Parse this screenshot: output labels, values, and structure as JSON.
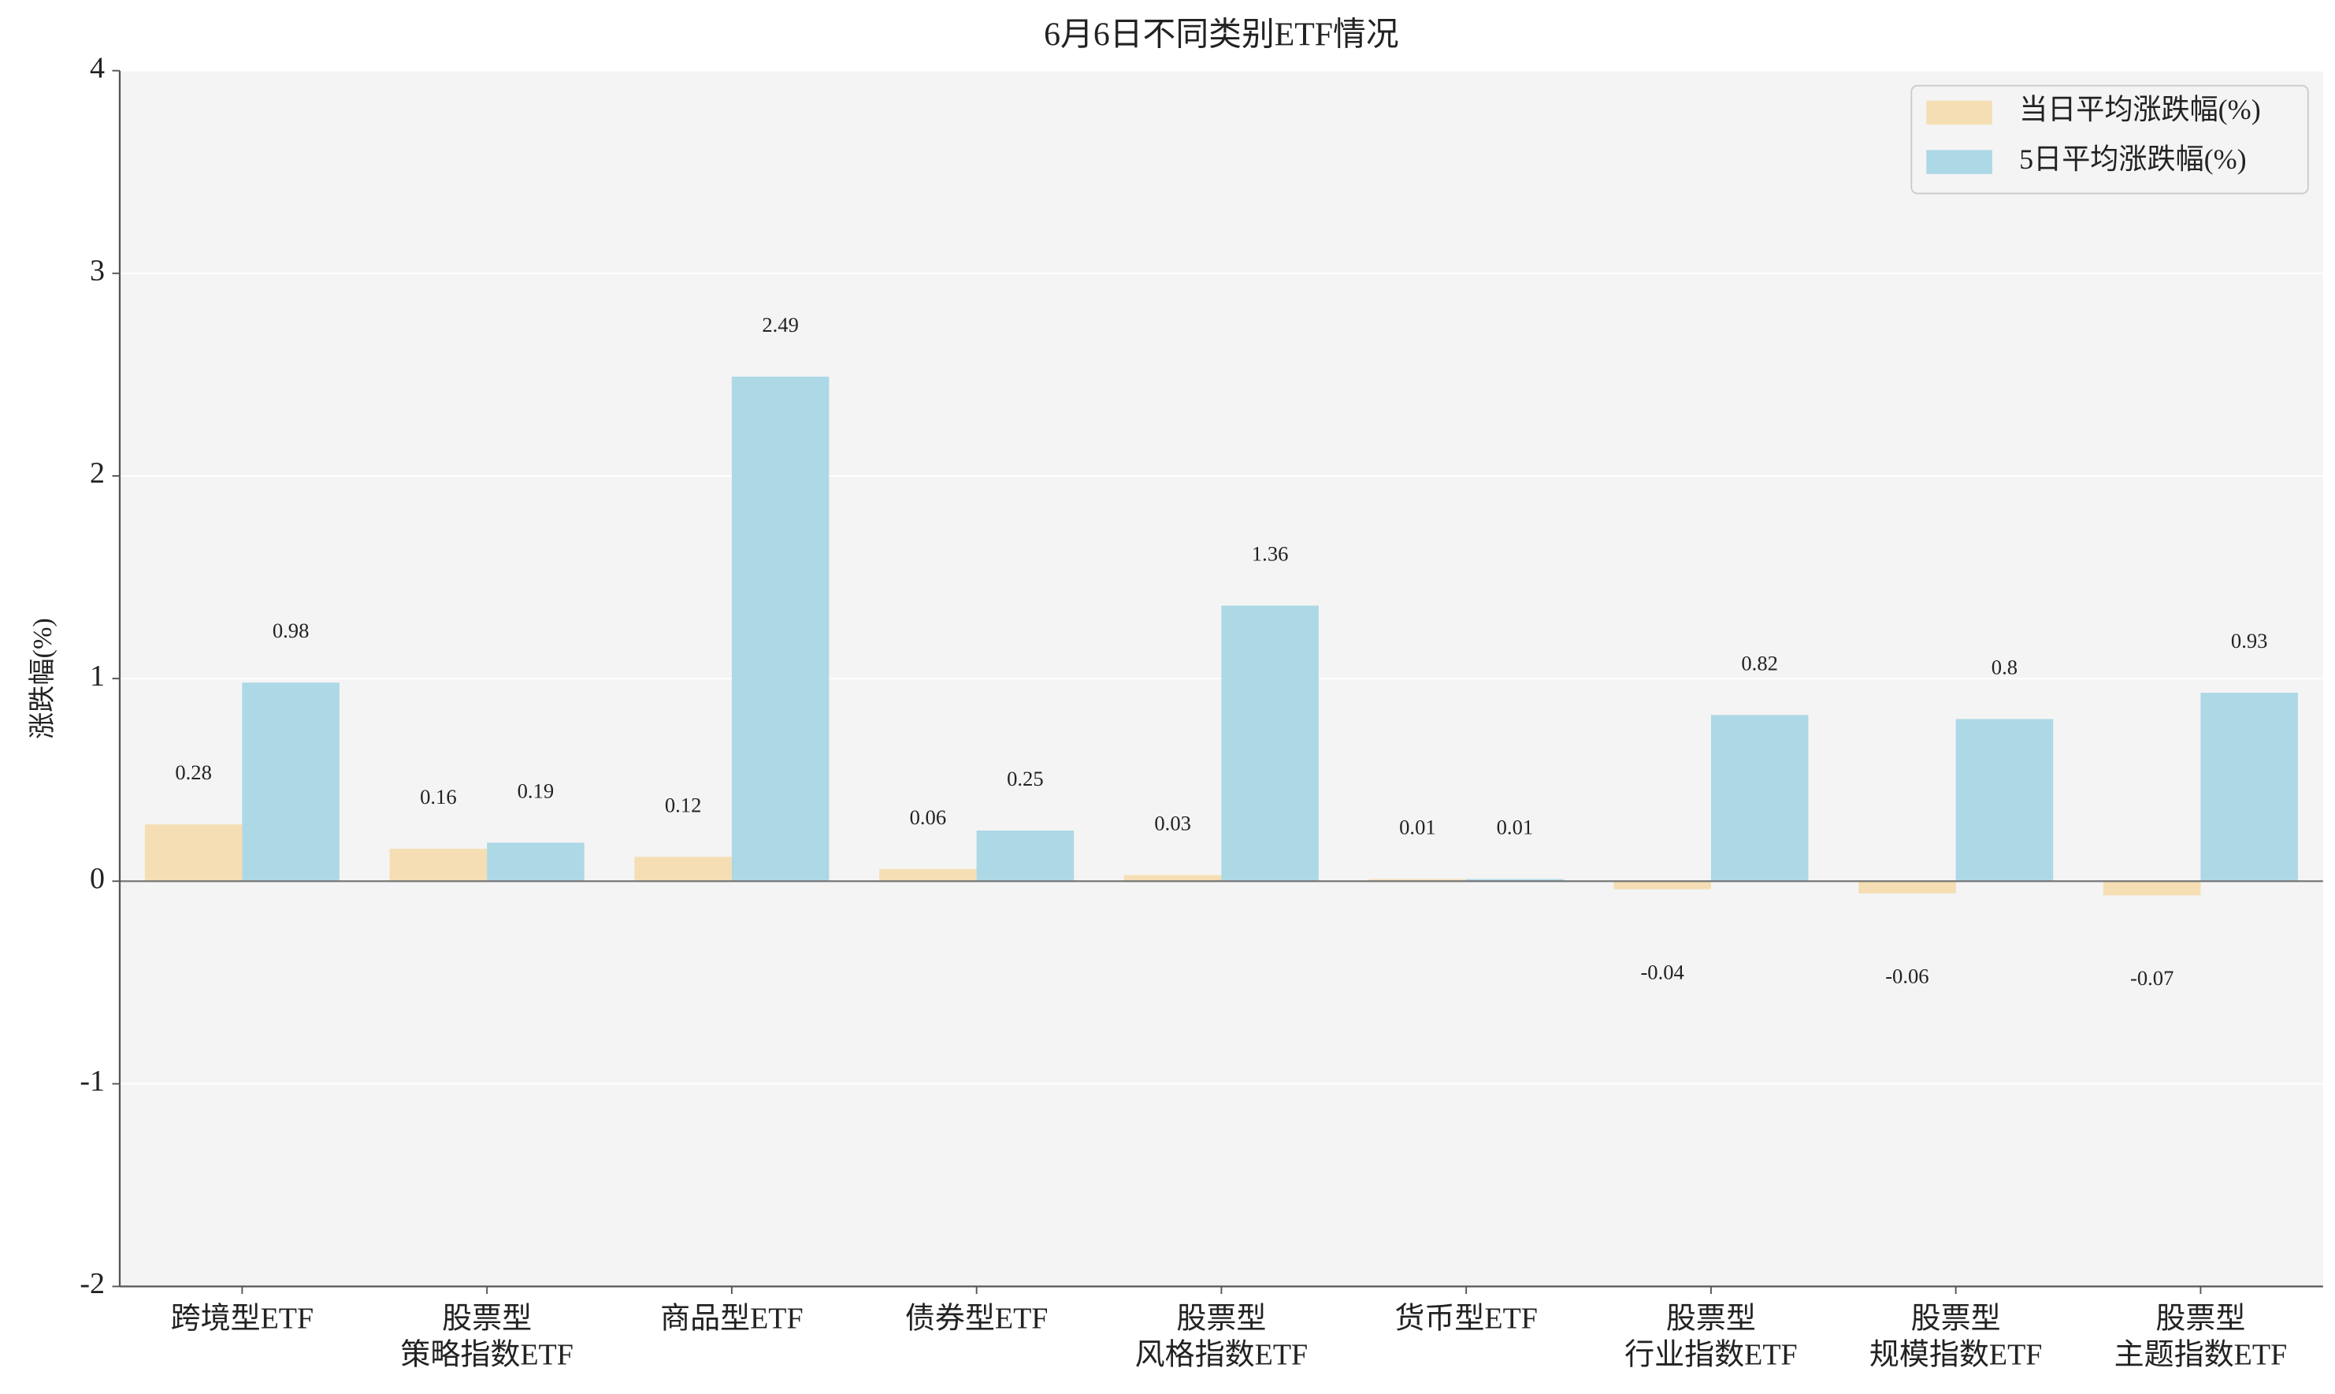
{
  "chart_data": {
    "type": "bar",
    "title": "6月6日不同类别ETF情况",
    "y_label": "涨跌幅(%)",
    "categories": [
      "跨境型ETF",
      "股票型\n策略指数ETF",
      "商品型ETF",
      "债券型ETF",
      "股票型\n风格指数ETF",
      "货币型ETF",
      "股票型\n行业指数ETF",
      "股票型\n规模指数ETF",
      "股票型\n主题指数ETF"
    ],
    "series": [
      {
        "name": "当日平均涨跌幅(%)",
        "color": "#f5deb3",
        "values": [
          0.28,
          0.16,
          0.12,
          0.06,
          0.03,
          0.01,
          -0.04,
          -0.06,
          -0.07
        ]
      },
      {
        "name": "5日平均涨跌幅(%)",
        "color": "#add8e6",
        "values": [
          0.98,
          0.19,
          2.49,
          0.25,
          1.36,
          0.01,
          0.82,
          0.8,
          0.93
        ]
      }
    ],
    "ylim": [
      -2,
      4
    ],
    "yticks": [
      -2,
      -1,
      0,
      1,
      2,
      3,
      4
    ],
    "grid": true,
    "legend": "upper right"
  }
}
